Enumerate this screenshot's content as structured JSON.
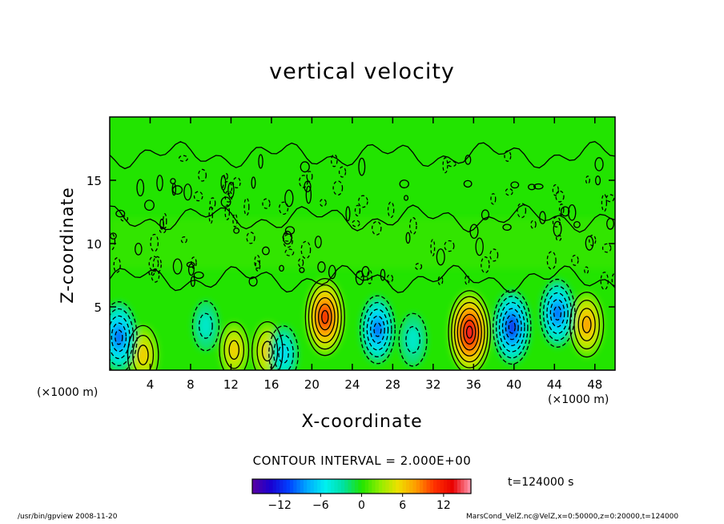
{
  "chart_data": {
    "type": "heatmap",
    "title": "vertical velocity",
    "xlabel": "X-coordinate",
    "ylabel": "Z-coordinate",
    "x_unit_label": "(×1000 m)",
    "xlim": [
      0,
      50
    ],
    "ylim": [
      0,
      20
    ],
    "x_ticks": [
      4,
      8,
      12,
      16,
      20,
      24,
      28,
      32,
      36,
      40,
      44,
      48
    ],
    "y_ticks": [
      5,
      10,
      15
    ],
    "contour_interval_label": "CONTOUR INTERVAL = 2.000E+00",
    "colorbar": {
      "range": [
        -16,
        16
      ],
      "ticks": [
        -12,
        -6,
        0,
        6,
        12
      ]
    },
    "features": [
      {
        "x": 21.3,
        "z": 4.2,
        "value": 12
      },
      {
        "x": 35.6,
        "z": 3.0,
        "value": 14
      },
      {
        "x": 47.2,
        "z": 3.6,
        "value": 8
      },
      {
        "x": 12.3,
        "z": 1.6,
        "value": 5
      },
      {
        "x": 15.6,
        "z": 1.5,
        "value": 6
      },
      {
        "x": 3.3,
        "z": 1.2,
        "value": 6
      },
      {
        "x": 0.9,
        "z": 2.6,
        "value": -10
      },
      {
        "x": 26.5,
        "z": 3.2,
        "value": -9
      },
      {
        "x": 39.8,
        "z": 3.4,
        "value": -11
      },
      {
        "x": 44.3,
        "z": 4.5,
        "value": -9
      },
      {
        "x": 17.2,
        "z": 1.3,
        "value": -5
      },
      {
        "x": 30.0,
        "z": 2.4,
        "value": -4
      },
      {
        "x": 9.5,
        "z": 3.5,
        "value": -3
      }
    ],
    "time_label": "t=124000 s"
  },
  "footer": {
    "left": "/usr/bin/gpview  2008-11-20",
    "right": "MarsCond_VelZ.nc@VelZ,x=0:50000,z=0:20000,t=124000"
  },
  "colors": {
    "background_field": "#22e400",
    "contour_line": "#000000",
    "colormap": [
      "#5a00a0",
      "#1a00d0",
      "#0040ff",
      "#00a8ff",
      "#00f0f0",
      "#00e0a0",
      "#20e400",
      "#90ee00",
      "#eee000",
      "#ff9a00",
      "#ff3000",
      "#e80000",
      "#ff9cb4"
    ]
  }
}
